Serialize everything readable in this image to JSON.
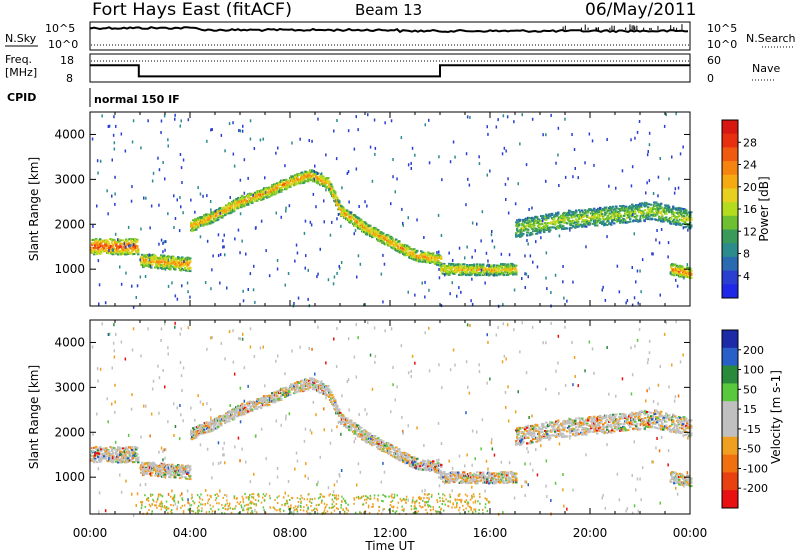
{
  "header": {
    "station": "Fort Hays East (fitACF)",
    "beam": "Beam 13",
    "date": "06/May/2011"
  },
  "top_panels": {
    "nsky_label": "N.Sky",
    "nsearch_label": "N.Search",
    "noise_ticks": [
      "10^5",
      "10^0"
    ],
    "freq_label": "Freq.",
    "freq_unit": "[MHz]",
    "freq_ticks": [
      "18",
      "8"
    ],
    "nave_label": "Nave",
    "nave_ticks": [
      "60",
      "0"
    ],
    "cpid_label": "CPID",
    "cpid_text": "normal 150 IF"
  },
  "colorbars": {
    "power": {
      "label": "Power [dB]",
      "ticks": [
        "28",
        "24",
        "20",
        "16",
        "12",
        "8",
        "4"
      ],
      "colors": [
        "#d81810",
        "#e83010",
        "#f05a10",
        "#f4840f",
        "#f4aa10",
        "#e8d020",
        "#b4dc1e",
        "#6ec030",
        "#3a9a5a",
        "#2c8c8c",
        "#2a6ab0",
        "#2a3ed0",
        "#1e28e6"
      ]
    },
    "velocity": {
      "label": "Velocity [m s-1]",
      "ticks": [
        "200",
        "100",
        "50",
        "15",
        "-15",
        "-50",
        "-100",
        "-200"
      ],
      "colors": [
        "#1c2aa8",
        "#2860c8",
        "#2a8a3c",
        "#5ac83c",
        "#c0c0c0",
        "#c0c0c0",
        "#f0a020",
        "#f07010",
        "#e84010",
        "#e81010"
      ]
    }
  },
  "x_axis": {
    "label": "Time UT",
    "ticks": [
      "00:00",
      "04:00",
      "08:00",
      "12:00",
      "16:00",
      "20:00",
      "00:00"
    ]
  },
  "chart_data": {
    "type": "heatmap",
    "y_axis_label": "Slant Range [km]",
    "y_ticks": [
      1000,
      2000,
      3000,
      4000
    ],
    "ylim": [
      180,
      4500
    ],
    "xlim_hours": [
      0,
      24
    ],
    "frequency_mhz": [
      {
        "t": 0,
        "v": 14
      },
      {
        "t": 1.95,
        "v": 14
      },
      {
        "t": 1.95,
        "v": 10
      },
      {
        "t": 14.0,
        "v": 10
      },
      {
        "t": 14.0,
        "v": 14
      },
      {
        "t": 24,
        "v": 14
      }
    ],
    "power_bands": [
      {
        "name": "main-arc",
        "points": [
          [
            4.0,
            1950
          ],
          [
            5.0,
            2200
          ],
          [
            6.0,
            2500
          ],
          [
            7.0,
            2700
          ],
          [
            8.0,
            2950
          ],
          [
            8.8,
            3100
          ],
          [
            9.5,
            2900
          ],
          [
            10.0,
            2300
          ],
          [
            11.0,
            1900
          ],
          [
            12.0,
            1600
          ],
          [
            13.0,
            1300
          ],
          [
            14.0,
            1200
          ]
        ],
        "width_km": 250,
        "peak_db": 22
      },
      {
        "name": "early-low-band",
        "points": [
          [
            0,
            1500
          ],
          [
            1.9,
            1500
          ]
        ],
        "width_km": 350,
        "peak_db": 26
      },
      {
        "name": "low-band-2",
        "points": [
          [
            2.0,
            1200
          ],
          [
            3.0,
            1150
          ],
          [
            4.0,
            1100
          ]
        ],
        "width_km": 300,
        "peak_db": 22
      },
      {
        "name": "late-band",
        "points": [
          [
            14.0,
            1000
          ],
          [
            16.0,
            980
          ],
          [
            17.0,
            1000
          ]
        ],
        "width_km": 250,
        "peak_db": 20
      },
      {
        "name": "evening-band",
        "points": [
          [
            17.0,
            1900
          ],
          [
            19.0,
            2100
          ],
          [
            21.0,
            2200
          ],
          [
            22.5,
            2300
          ],
          [
            24,
            2100
          ]
        ],
        "width_km": 400,
        "peak_db": 16
      },
      {
        "name": "end-low",
        "points": [
          [
            23.2,
            1000
          ],
          [
            24,
            900
          ]
        ],
        "width_km": 250,
        "peak_db": 24
      }
    ]
  }
}
